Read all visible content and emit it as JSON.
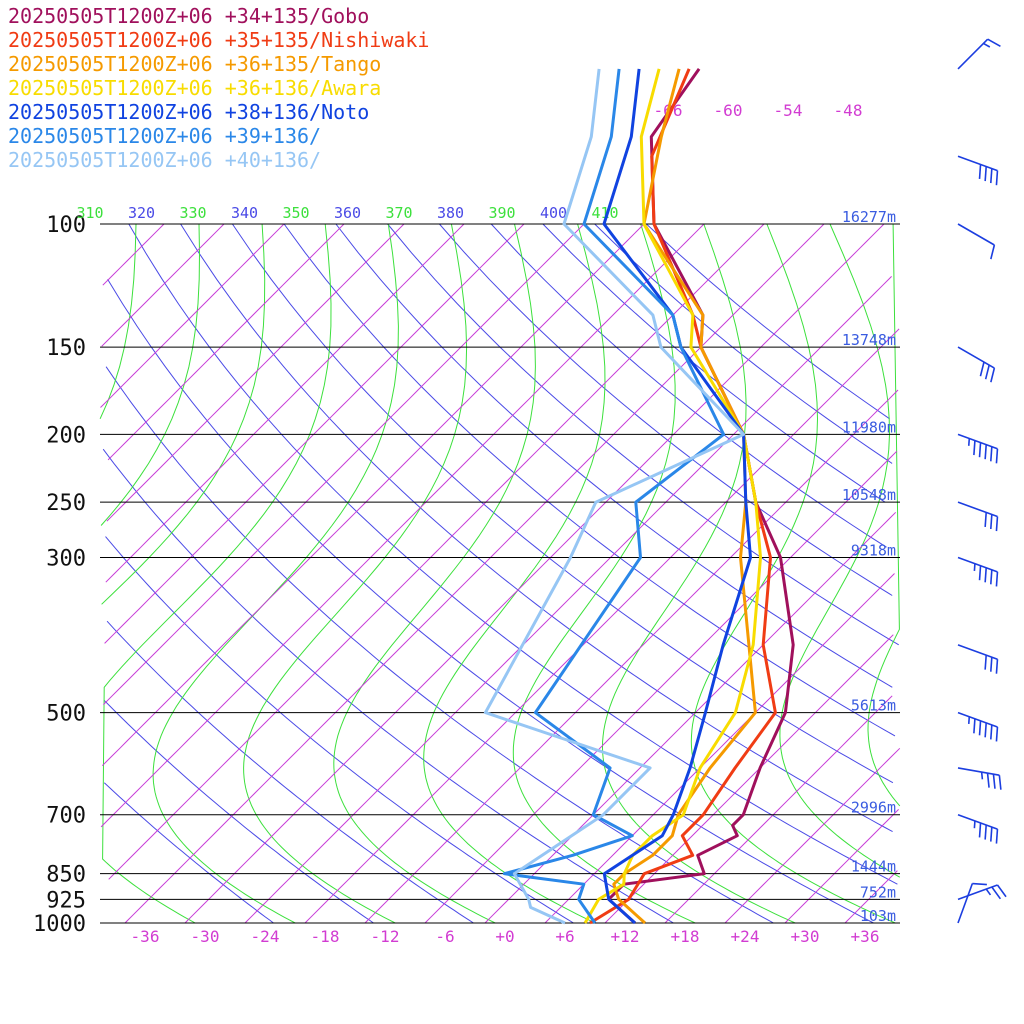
{
  "chart_data": {
    "type": "line",
    "title": "",
    "xlabel": "",
    "ylabel": "",
    "xlim": [
      -40,
      40
    ],
    "pressure_levels": [
      {
        "p": 100,
        "label": "100",
        "height": "16277m"
      },
      {
        "p": 150,
        "label": "150",
        "height": "13748m"
      },
      {
        "p": 200,
        "label": "200",
        "height": "11980m"
      },
      {
        "p": 250,
        "label": "250",
        "height": "10548m"
      },
      {
        "p": 300,
        "label": "300",
        "height": "9318m"
      },
      {
        "p": 500,
        "label": "500",
        "height": "5613m"
      },
      {
        "p": 700,
        "label": "700",
        "height": "2996m"
      },
      {
        "p": 850,
        "label": "850",
        "height": "1444m"
      },
      {
        "p": 925,
        "label": "925",
        "height": "752m"
      },
      {
        "p": 1000,
        "label": "1000",
        "height": "103m"
      }
    ],
    "x_ticks": [
      {
        "v": -36,
        "label": "-36"
      },
      {
        "v": -30,
        "label": "-30"
      },
      {
        "v": -24,
        "label": "-24"
      },
      {
        "v": -18,
        "label": "-18"
      },
      {
        "v": -12,
        "label": "-12"
      },
      {
        "v": -6,
        "label": "-6"
      },
      {
        "v": 0,
        "label": "+0"
      },
      {
        "v": 6,
        "label": "+6"
      },
      {
        "v": 12,
        "label": "+12"
      },
      {
        "v": 18,
        "label": "+18"
      },
      {
        "v": 24,
        "label": "+24"
      },
      {
        "v": 30,
        "label": "+30"
      },
      {
        "v": 36,
        "label": "+36"
      }
    ],
    "upper_isotherm_labels": [
      "-66",
      "-60",
      "-54",
      "-48"
    ],
    "theta_labels": [
      "310",
      "320",
      "330",
      "340",
      "350",
      "360",
      "370",
      "380",
      "390",
      "400",
      "410"
    ],
    "series": [
      {
        "name": "20250505T1200Z+06 +34+135/Gobo",
        "color": "#a0105c",
        "profile": [
          [
            1000,
            13
          ],
          [
            925,
            8
          ],
          [
            880,
            8
          ],
          [
            850,
            15
          ],
          [
            800,
            12.5
          ],
          [
            750,
            14.5
          ],
          [
            725,
            13
          ],
          [
            700,
            13
          ],
          [
            600,
            10
          ],
          [
            500,
            7
          ],
          [
            400,
            1
          ],
          [
            300,
            -9
          ],
          [
            250,
            -17
          ],
          [
            200,
            -25
          ],
          [
            150,
            -38
          ],
          [
            135,
            -41
          ],
          [
            100,
            -55
          ],
          [
            75,
            -64
          ],
          [
            60,
            -66
          ]
        ]
      },
      {
        "name": "20250505T1200Z+06 +35+135/Nishiwaki",
        "color": "#f03c14",
        "profile": [
          [
            1000,
            8.5
          ],
          [
            925,
            10
          ],
          [
            850,
            9
          ],
          [
            800,
            12
          ],
          [
            750,
            9
          ],
          [
            700,
            9
          ],
          [
            600,
            7.5
          ],
          [
            500,
            6
          ],
          [
            400,
            -2
          ],
          [
            300,
            -10
          ],
          [
            250,
            -17
          ],
          [
            200,
            -25
          ],
          [
            150,
            -38
          ],
          [
            135,
            -42
          ],
          [
            100,
            -55
          ],
          [
            80,
            -62
          ],
          [
            60,
            -67
          ]
        ]
      },
      {
        "name": "20250505T1200Z+06 +36+135/Tango",
        "color": "#f59a00",
        "profile": [
          [
            1000,
            14
          ],
          [
            925,
            9
          ],
          [
            880,
            7
          ],
          [
            850,
            7
          ],
          [
            800,
            8
          ],
          [
            750,
            8
          ],
          [
            700,
            6.5
          ],
          [
            600,
            5
          ],
          [
            500,
            4
          ],
          [
            300,
            -13
          ],
          [
            250,
            -18
          ],
          [
            200,
            -25
          ],
          [
            150,
            -38
          ],
          [
            135,
            -41
          ],
          [
            100,
            -56
          ],
          [
            75,
            -63
          ],
          [
            60,
            -68
          ]
        ]
      },
      {
        "name": "20250505T1200Z+06 +36+136/Awara",
        "color": "#f8dc00",
        "profile": [
          [
            1000,
            8
          ],
          [
            925,
            7
          ],
          [
            880,
            8
          ],
          [
            850,
            7
          ],
          [
            800,
            6
          ],
          [
            750,
            6
          ],
          [
            700,
            7
          ],
          [
            600,
            4
          ],
          [
            500,
            2
          ],
          [
            400,
            -3
          ],
          [
            300,
            -11
          ],
          [
            250,
            -17
          ],
          [
            200,
            -25
          ],
          [
            150,
            -39
          ],
          [
            135,
            -42
          ],
          [
            100,
            -56
          ],
          [
            75,
            -65
          ],
          [
            60,
            -70
          ]
        ]
      },
      {
        "name": "20250505T1200Z+06 +38+136/Noto",
        "color": "#1043e0",
        "profile": [
          [
            1000,
            13
          ],
          [
            925,
            8
          ],
          [
            850,
            5
          ],
          [
            750,
            7
          ],
          [
            700,
            6
          ],
          [
            600,
            3
          ],
          [
            500,
            -1
          ],
          [
            400,
            -6
          ],
          [
            300,
            -12
          ],
          [
            250,
            -18
          ],
          [
            200,
            -25
          ],
          [
            150,
            -40
          ],
          [
            135,
            -44
          ],
          [
            100,
            -60
          ],
          [
            75,
            -66
          ],
          [
            60,
            -72
          ]
        ]
      },
      {
        "name": "20250505T1200Z+06 +39+136/",
        "color": "#2a87e8",
        "profile": [
          [
            1000,
            9
          ],
          [
            925,
            5
          ],
          [
            880,
            4
          ],
          [
            850,
            -5
          ],
          [
            800,
            0
          ],
          [
            750,
            4
          ],
          [
            700,
            -2
          ],
          [
            600,
            -5
          ],
          [
            500,
            -18
          ],
          [
            300,
            -23
          ],
          [
            250,
            -29
          ],
          [
            200,
            -27
          ],
          [
            150,
            -40
          ],
          [
            135,
            -44
          ],
          [
            100,
            -62
          ],
          [
            75,
            -68
          ],
          [
            60,
            -74
          ]
        ]
      },
      {
        "name": "20250505T1200Z+06 +40+136/",
        "color": "#96c6f4",
        "profile": [
          [
            1000,
            6
          ],
          [
            950,
            1
          ],
          [
            925,
            0
          ],
          [
            850,
            -4
          ],
          [
            700,
            -1
          ],
          [
            600,
            -1
          ],
          [
            500,
            -23
          ],
          [
            300,
            -30
          ],
          [
            250,
            -33
          ],
          [
            200,
            -25
          ],
          [
            150,
            -42
          ],
          [
            135,
            -46
          ],
          [
            100,
            -64
          ],
          [
            75,
            -70
          ],
          [
            60,
            -76
          ]
        ]
      }
    ],
    "wind_barbs": [
      {
        "p": 60,
        "dir": 225,
        "kt": 5
      },
      {
        "p": 80,
        "dir": 290,
        "kt": 40
      },
      {
        "p": 100,
        "dir": 300,
        "kt": 10
      },
      {
        "p": 150,
        "dir": 300,
        "kt": 30
      },
      {
        "p": 200,
        "dir": 290,
        "kt": 45
      },
      {
        "p": 250,
        "dir": 290,
        "kt": 30
      },
      {
        "p": 300,
        "dir": 290,
        "kt": 35
      },
      {
        "p": 400,
        "dir": 290,
        "kt": 30
      },
      {
        "p": 500,
        "dir": 290,
        "kt": 45
      },
      {
        "p": 600,
        "dir": 280,
        "kt": 25
      },
      {
        "p": 700,
        "dir": 290,
        "kt": 35
      },
      {
        "p": 925,
        "dir": 250,
        "kt": 15
      },
      {
        "p": 1000,
        "dir": 200,
        "kt": 10
      }
    ]
  }
}
